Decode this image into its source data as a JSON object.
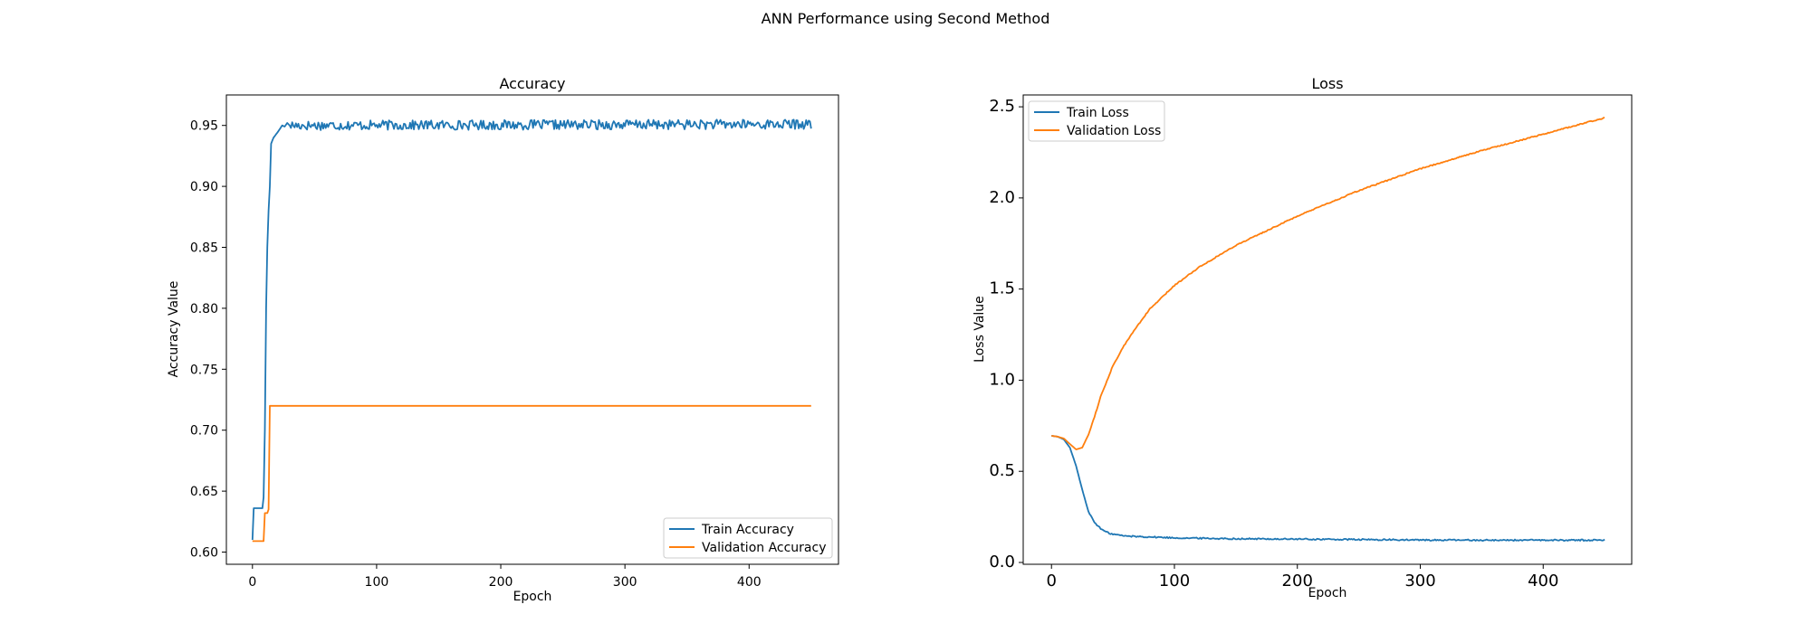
{
  "figure": {
    "suptitle": "ANN Performance using Second Method"
  },
  "colors": {
    "train": "#1f77b4",
    "validation": "#ff7f0e"
  },
  "chart_data": [
    {
      "type": "line",
      "title": "Accuracy",
      "xlabel": "Epoch",
      "ylabel": "Accuracy Value",
      "xlim": [
        -21,
        472
      ],
      "ylim": [
        0.59,
        0.975
      ],
      "xticks": [
        0,
        100,
        200,
        300,
        400
      ],
      "yticks": [
        0.6,
        0.65,
        0.7,
        0.75,
        0.8,
        0.85,
        0.9,
        0.95
      ],
      "legend_loc": "lower-right",
      "grid": false,
      "series": [
        {
          "name": "Train Accuracy",
          "color": "#1f77b4",
          "points": [
            [
              0,
              0.61
            ],
            [
              1,
              0.636
            ],
            [
              5,
              0.636
            ],
            [
              8,
              0.636
            ],
            [
              9,
              0.645
            ],
            [
              10,
              0.7
            ],
            [
              11,
              0.8
            ],
            [
              12,
              0.85
            ],
            [
              13,
              0.88
            ],
            [
              14,
              0.9
            ],
            [
              15,
              0.935
            ],
            [
              17,
              0.94
            ],
            [
              20,
              0.944
            ],
            [
              22,
              0.947
            ],
            [
              24,
              0.95
            ],
            [
              26,
              0.949
            ],
            [
              28,
              0.952
            ],
            [
              30,
              0.95
            ],
            [
              450,
              0.951
            ]
          ],
          "noise": 0.004
        },
        {
          "name": "Validation Accuracy",
          "color": "#ff7f0e",
          "points": [
            [
              0,
              0.609
            ],
            [
              9,
              0.609
            ],
            [
              10,
              0.632
            ],
            [
              12,
              0.632
            ],
            [
              13,
              0.635
            ],
            [
              14,
              0.72
            ],
            [
              450,
              0.72
            ]
          ],
          "noise": 0
        }
      ]
    },
    {
      "type": "line",
      "title": "Loss",
      "xlabel": "Epoch",
      "ylabel": "Loss Value",
      "xlim": [
        -23,
        472
      ],
      "ylim": [
        -0.01,
        2.565
      ],
      "xticks": [
        0,
        100,
        200,
        300,
        400
      ],
      "yticks": [
        0.0,
        0.5,
        1.0,
        1.5,
        2.0,
        2.5
      ],
      "legend_loc": "upper-left",
      "grid": false,
      "series": [
        {
          "name": "Train Loss",
          "color": "#1f77b4",
          "points": [
            [
              0,
              0.695
            ],
            [
              5,
              0.69
            ],
            [
              10,
              0.675
            ],
            [
              15,
              0.63
            ],
            [
              20,
              0.53
            ],
            [
              25,
              0.4
            ],
            [
              30,
              0.28
            ],
            [
              35,
              0.22
            ],
            [
              40,
              0.185
            ],
            [
              45,
              0.165
            ],
            [
              50,
              0.155
            ],
            [
              60,
              0.145
            ],
            [
              80,
              0.14
            ],
            [
              100,
              0.135
            ],
            [
              150,
              0.13
            ],
            [
              200,
              0.128
            ],
            [
              300,
              0.123
            ],
            [
              400,
              0.122
            ],
            [
              450,
              0.123
            ]
          ],
          "noise": 0.004
        },
        {
          "name": "Validation Loss",
          "color": "#ff7f0e",
          "points": [
            [
              0,
              0.695
            ],
            [
              5,
              0.69
            ],
            [
              10,
              0.68
            ],
            [
              15,
              0.65
            ],
            [
              20,
              0.62
            ],
            [
              25,
              0.63
            ],
            [
              30,
              0.7
            ],
            [
              35,
              0.8
            ],
            [
              40,
              0.91
            ],
            [
              50,
              1.08
            ],
            [
              60,
              1.2
            ],
            [
              70,
              1.3
            ],
            [
              80,
              1.39
            ],
            [
              100,
              1.52
            ],
            [
              120,
              1.62
            ],
            [
              150,
              1.74
            ],
            [
              200,
              1.9
            ],
            [
              250,
              2.04
            ],
            [
              300,
              2.16
            ],
            [
              350,
              2.26
            ],
            [
              400,
              2.35
            ],
            [
              450,
              2.44
            ]
          ],
          "noise": 0.003
        }
      ]
    }
  ]
}
